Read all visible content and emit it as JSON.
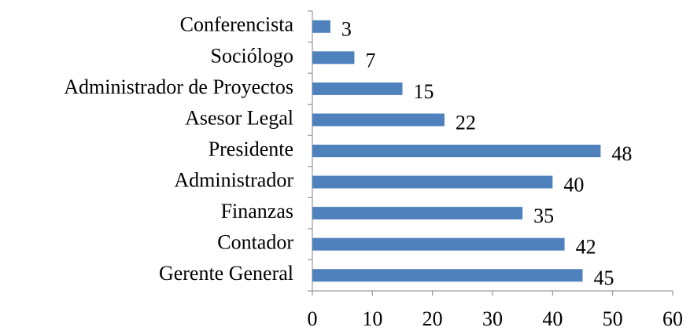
{
  "chart_data": {
    "type": "bar",
    "orientation": "horizontal",
    "categories": [
      "Conferencista",
      "Sociólogo",
      "Administrador de Proyectos",
      "Asesor Legal",
      "Presidente",
      "Administrador",
      "Finanzas",
      "Contador",
      "Gerente General"
    ],
    "values": [
      3,
      7,
      15,
      22,
      48,
      40,
      35,
      42,
      45
    ],
    "color": "#4f81bd",
    "xlim": [
      0,
      60
    ],
    "xticks": [
      0,
      10,
      20,
      30,
      40,
      50,
      60
    ],
    "grid": false
  }
}
